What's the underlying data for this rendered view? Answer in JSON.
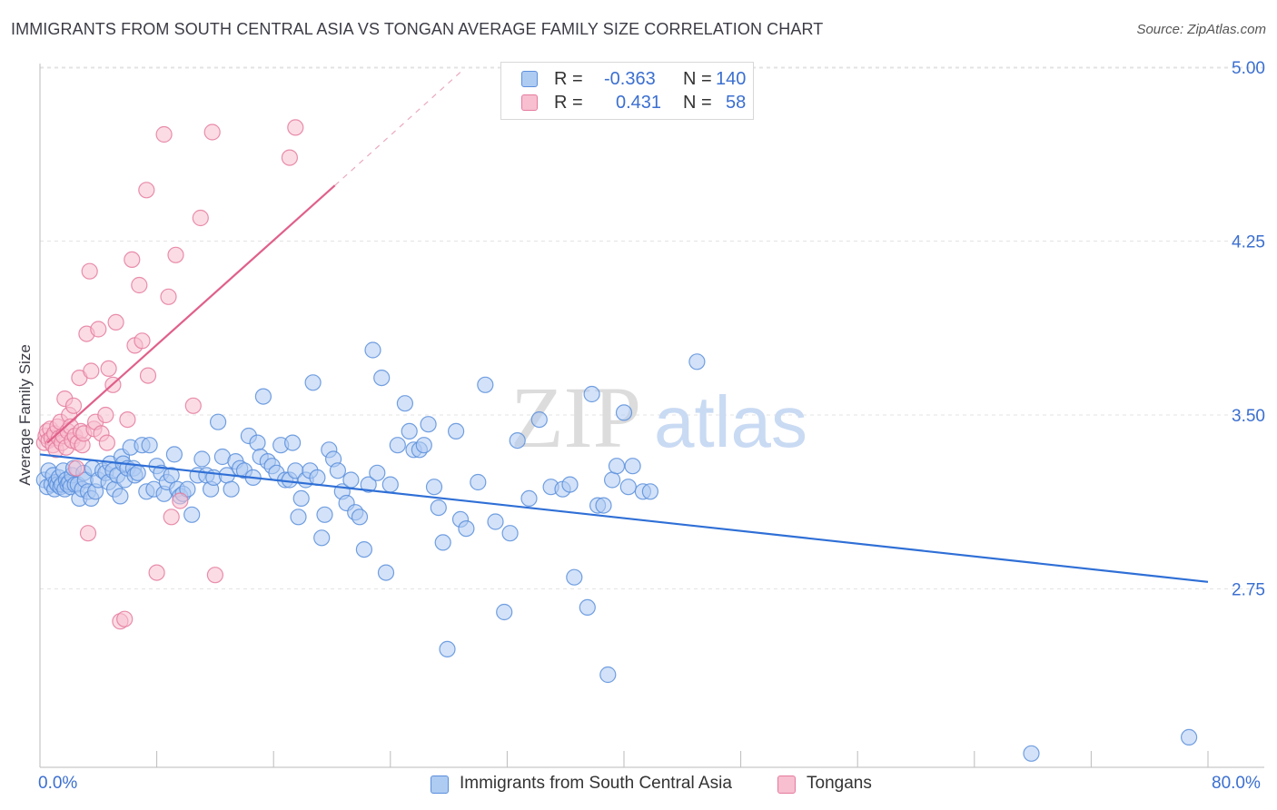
{
  "header": {
    "title": "IMMIGRANTS FROM SOUTH CENTRAL ASIA VS TONGAN AVERAGE FAMILY SIZE CORRELATION CHART",
    "source": "Source: ZipAtlas.com"
  },
  "legend": {
    "r_label": "R =",
    "n_label": "N =",
    "rows": [
      {
        "r": "-0.363",
        "n": "140",
        "fill": "#aecbf2",
        "stroke": "#5b8fdc"
      },
      {
        "r": "0.431",
        "n": "58",
        "fill": "#f7bfd0",
        "stroke": "#e57b9e"
      }
    ]
  },
  "watermark": {
    "zip": "ZIP",
    "atlas": "atlas"
  },
  "chart_data": {
    "type": "scatter",
    "ylabel": "Average Family Size",
    "x_range": [
      0,
      80
    ],
    "y_range": [
      2.0,
      5.12
    ],
    "x_tick_labels": [
      "0.0%",
      "80.0%"
    ],
    "y_ticks": [
      {
        "value": 2.75,
        "label": "2.75"
      },
      {
        "value": 3.5,
        "label": "3.50"
      },
      {
        "value": 4.25,
        "label": "4.25"
      },
      {
        "value": 5.0,
        "label": "5.00"
      }
    ],
    "grid": true,
    "series": [
      {
        "name": "Immigrants from South Central Asia",
        "color": "#5b8fdc",
        "fill": "#aecbf2",
        "trend": {
          "x0": 0,
          "y0": 3.33,
          "x1": 80,
          "y1": 2.78,
          "color": "#2f6fd6"
        },
        "points": [
          [
            0.3,
            3.22
          ],
          [
            0.5,
            3.19
          ],
          [
            0.6,
            3.26
          ],
          [
            0.8,
            3.2
          ],
          [
            0.9,
            3.24
          ],
          [
            1.0,
            3.18
          ],
          [
            1.1,
            3.21
          ],
          [
            1.2,
            3.2
          ],
          [
            1.3,
            3.23
          ],
          [
            1.4,
            3.19
          ],
          [
            1.5,
            3.2
          ],
          [
            1.6,
            3.26
          ],
          [
            1.7,
            3.18
          ],
          [
            1.8,
            3.22
          ],
          [
            1.9,
            3.2
          ],
          [
            2.0,
            3.21
          ],
          [
            2.1,
            3.19
          ],
          [
            2.2,
            3.24
          ],
          [
            2.3,
            3.27
          ],
          [
            2.4,
            3.2
          ],
          [
            2.6,
            3.2
          ],
          [
            2.7,
            3.14
          ],
          [
            2.9,
            3.18
          ],
          [
            3.0,
            3.25
          ],
          [
            3.1,
            3.22
          ],
          [
            3.3,
            3.17
          ],
          [
            3.5,
            3.14
          ],
          [
            3.6,
            3.27
          ],
          [
            3.8,
            3.17
          ],
          [
            4.0,
            3.22
          ],
          [
            4.3,
            3.26
          ],
          [
            4.5,
            3.25
          ],
          [
            4.7,
            3.21
          ],
          [
            4.8,
            3.29
          ],
          [
            5.0,
            3.26
          ],
          [
            5.1,
            3.18
          ],
          [
            5.3,
            3.24
          ],
          [
            5.5,
            3.15
          ],
          [
            5.6,
            3.32
          ],
          [
            5.7,
            3.29
          ],
          [
            5.8,
            3.22
          ],
          [
            6.0,
            3.27
          ],
          [
            6.2,
            3.36
          ],
          [
            6.4,
            3.27
          ],
          [
            6.5,
            3.24
          ],
          [
            6.7,
            3.25
          ],
          [
            7.0,
            3.37
          ],
          [
            7.3,
            3.17
          ],
          [
            7.5,
            3.37
          ],
          [
            7.8,
            3.18
          ],
          [
            8.0,
            3.28
          ],
          [
            8.3,
            3.25
          ],
          [
            8.5,
            3.16
          ],
          [
            8.7,
            3.21
          ],
          [
            9.0,
            3.24
          ],
          [
            9.2,
            3.33
          ],
          [
            9.4,
            3.18
          ],
          [
            9.6,
            3.15
          ],
          [
            9.8,
            3.16
          ],
          [
            10.1,
            3.18
          ],
          [
            10.4,
            3.07
          ],
          [
            10.8,
            3.24
          ],
          [
            11.1,
            3.31
          ],
          [
            11.4,
            3.24
          ],
          [
            11.7,
            3.18
          ],
          [
            11.9,
            3.23
          ],
          [
            12.2,
            3.47
          ],
          [
            12.5,
            3.32
          ],
          [
            12.8,
            3.24
          ],
          [
            13.1,
            3.18
          ],
          [
            13.4,
            3.3
          ],
          [
            13.7,
            3.27
          ],
          [
            14.0,
            3.26
          ],
          [
            14.3,
            3.41
          ],
          [
            14.6,
            3.23
          ],
          [
            14.9,
            3.38
          ],
          [
            15.1,
            3.32
          ],
          [
            15.3,
            3.58
          ],
          [
            15.6,
            3.3
          ],
          [
            15.9,
            3.28
          ],
          [
            16.2,
            3.25
          ],
          [
            16.5,
            3.37
          ],
          [
            16.8,
            3.22
          ],
          [
            17.1,
            3.22
          ],
          [
            17.3,
            3.38
          ],
          [
            17.5,
            3.26
          ],
          [
            17.7,
            3.06
          ],
          [
            17.9,
            3.14
          ],
          [
            18.2,
            3.22
          ],
          [
            18.5,
            3.26
          ],
          [
            18.7,
            3.64
          ],
          [
            19.0,
            3.23
          ],
          [
            19.3,
            2.97
          ],
          [
            19.5,
            3.07
          ],
          [
            19.8,
            3.35
          ],
          [
            20.1,
            3.31
          ],
          [
            20.4,
            3.26
          ],
          [
            20.7,
            3.17
          ],
          [
            21.0,
            3.12
          ],
          [
            21.3,
            3.22
          ],
          [
            21.6,
            3.08
          ],
          [
            21.9,
            3.06
          ],
          [
            22.2,
            2.92
          ],
          [
            22.5,
            3.2
          ],
          [
            22.8,
            3.78
          ],
          [
            23.1,
            3.25
          ],
          [
            23.4,
            3.66
          ],
          [
            23.7,
            2.82
          ],
          [
            24.0,
            3.2
          ],
          [
            24.5,
            3.37
          ],
          [
            25.0,
            3.55
          ],
          [
            25.3,
            3.43
          ],
          [
            25.6,
            3.35
          ],
          [
            26.0,
            3.35
          ],
          [
            26.3,
            3.37
          ],
          [
            26.6,
            3.46
          ],
          [
            27.0,
            3.19
          ],
          [
            27.3,
            3.1
          ],
          [
            27.6,
            2.95
          ],
          [
            27.9,
            2.49
          ],
          [
            28.5,
            3.43
          ],
          [
            28.8,
            3.05
          ],
          [
            29.2,
            3.01
          ],
          [
            30.0,
            3.21
          ],
          [
            30.5,
            3.63
          ],
          [
            31.2,
            3.04
          ],
          [
            31.8,
            2.65
          ],
          [
            32.2,
            2.99
          ],
          [
            32.7,
            3.39
          ],
          [
            33.5,
            3.14
          ],
          [
            34.2,
            3.48
          ],
          [
            35.0,
            3.19
          ],
          [
            35.8,
            3.18
          ],
          [
            36.3,
            3.2
          ],
          [
            36.6,
            2.8
          ],
          [
            37.5,
            2.67
          ],
          [
            37.8,
            3.59
          ],
          [
            38.2,
            3.11
          ],
          [
            38.6,
            3.11
          ],
          [
            38.9,
            2.38
          ],
          [
            39.2,
            3.22
          ],
          [
            39.5,
            3.28
          ],
          [
            40.0,
            3.51
          ],
          [
            40.3,
            3.19
          ],
          [
            40.6,
            3.28
          ],
          [
            41.3,
            3.17
          ],
          [
            41.8,
            3.17
          ],
          [
            45.0,
            3.73
          ],
          [
            67.9,
            2.04
          ],
          [
            78.7,
            2.11
          ]
        ]
      },
      {
        "name": "Tongans",
        "color": "#e57b9e",
        "fill": "#f7bfd0",
        "trend": {
          "x0": 0.5,
          "y0": 3.38,
          "x1": 20.2,
          "y1": 4.49,
          "dash_x1": 29,
          "dash_y1": 4.99,
          "color": "#e0608a"
        },
        "points": [
          [
            0.3,
            3.38
          ],
          [
            0.4,
            3.41
          ],
          [
            0.5,
            3.43
          ],
          [
            0.6,
            3.39
          ],
          [
            0.7,
            3.44
          ],
          [
            0.8,
            3.4
          ],
          [
            0.9,
            3.37
          ],
          [
            1.0,
            3.42
          ],
          [
            1.1,
            3.35
          ],
          [
            1.2,
            3.45
          ],
          [
            1.3,
            3.4
          ],
          [
            1.4,
            3.47
          ],
          [
            1.5,
            3.38
          ],
          [
            1.6,
            3.41
          ],
          [
            1.7,
            3.57
          ],
          [
            1.8,
            3.36
          ],
          [
            1.9,
            3.43
          ],
          [
            2.0,
            3.5
          ],
          [
            2.1,
            3.45
          ],
          [
            2.2,
            3.39
          ],
          [
            2.3,
            3.54
          ],
          [
            2.4,
            3.41
          ],
          [
            2.5,
            3.27
          ],
          [
            2.6,
            3.38
          ],
          [
            2.7,
            3.66
          ],
          [
            2.8,
            3.43
          ],
          [
            2.9,
            3.37
          ],
          [
            3.0,
            3.42
          ],
          [
            3.2,
            3.85
          ],
          [
            3.3,
            2.99
          ],
          [
            3.4,
            4.12
          ],
          [
            3.5,
            3.69
          ],
          [
            3.7,
            3.44
          ],
          [
            3.8,
            3.47
          ],
          [
            4.0,
            3.87
          ],
          [
            4.2,
            3.42
          ],
          [
            4.5,
            3.5
          ],
          [
            4.6,
            3.38
          ],
          [
            4.7,
            3.7
          ],
          [
            5.0,
            3.63
          ],
          [
            5.2,
            3.9
          ],
          [
            5.5,
            2.61
          ],
          [
            5.8,
            2.62
          ],
          [
            6.0,
            3.48
          ],
          [
            6.3,
            4.17
          ],
          [
            6.5,
            3.8
          ],
          [
            6.8,
            4.06
          ],
          [
            7.0,
            3.82
          ],
          [
            7.3,
            4.47
          ],
          [
            7.4,
            3.67
          ],
          [
            8.0,
            2.82
          ],
          [
            8.5,
            4.71
          ],
          [
            8.8,
            4.01
          ],
          [
            9.0,
            3.06
          ],
          [
            9.3,
            4.19
          ],
          [
            9.6,
            3.13
          ],
          [
            10.5,
            3.54
          ],
          [
            11.0,
            4.35
          ],
          [
            11.8,
            4.72
          ],
          [
            12.0,
            2.81
          ],
          [
            17.1,
            4.61
          ],
          [
            17.5,
            4.74
          ]
        ]
      }
    ]
  }
}
